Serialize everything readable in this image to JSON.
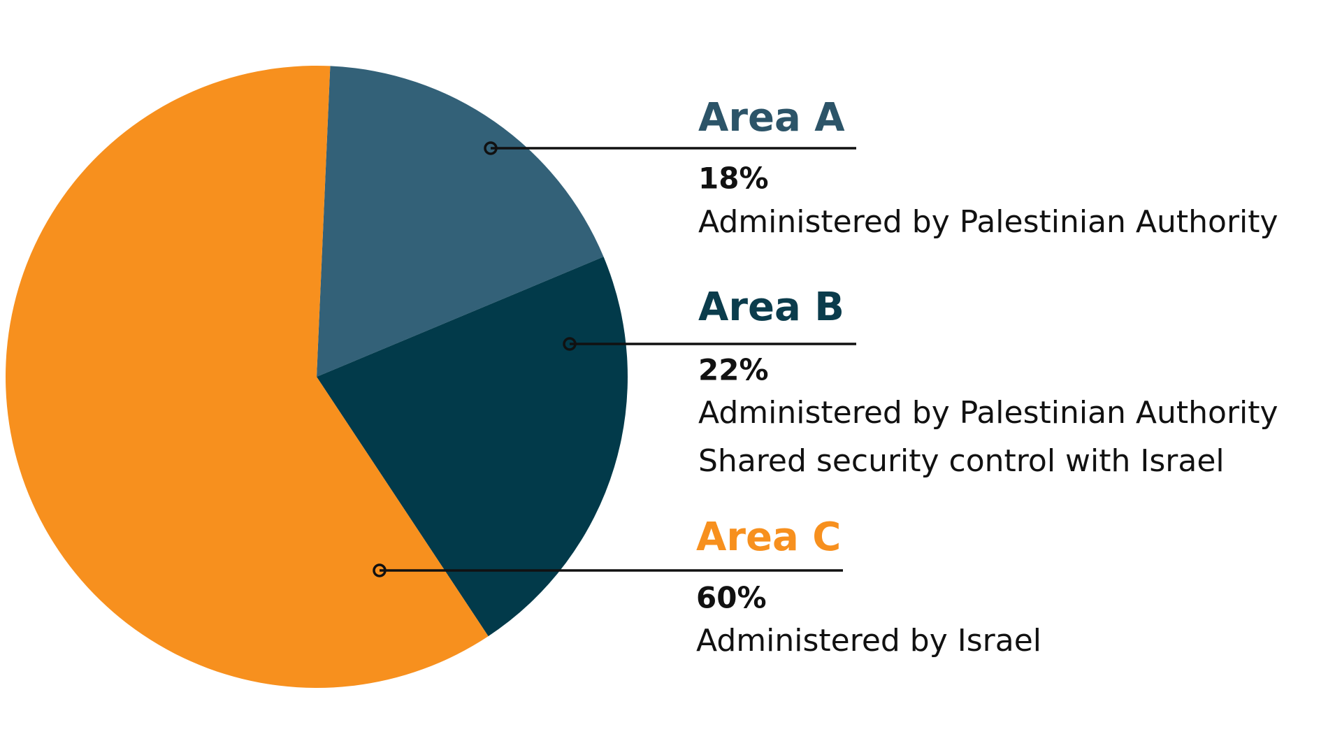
{
  "chart_data": {
    "type": "pie",
    "categories": [
      "Area A",
      "Area B",
      "Area C"
    ],
    "values": [
      18,
      22,
      60
    ],
    "value_labels": [
      "18%",
      "22%",
      "60%"
    ],
    "colors": [
      "#336178",
      "#023a4a",
      "#f7901e"
    ],
    "descriptions": [
      [
        "Administered by Palestinian Authority"
      ],
      [
        "Administered by Palestinian Authority",
        "Shared security control with Israel"
      ],
      [
        "Administered by Israel"
      ]
    ]
  }
}
